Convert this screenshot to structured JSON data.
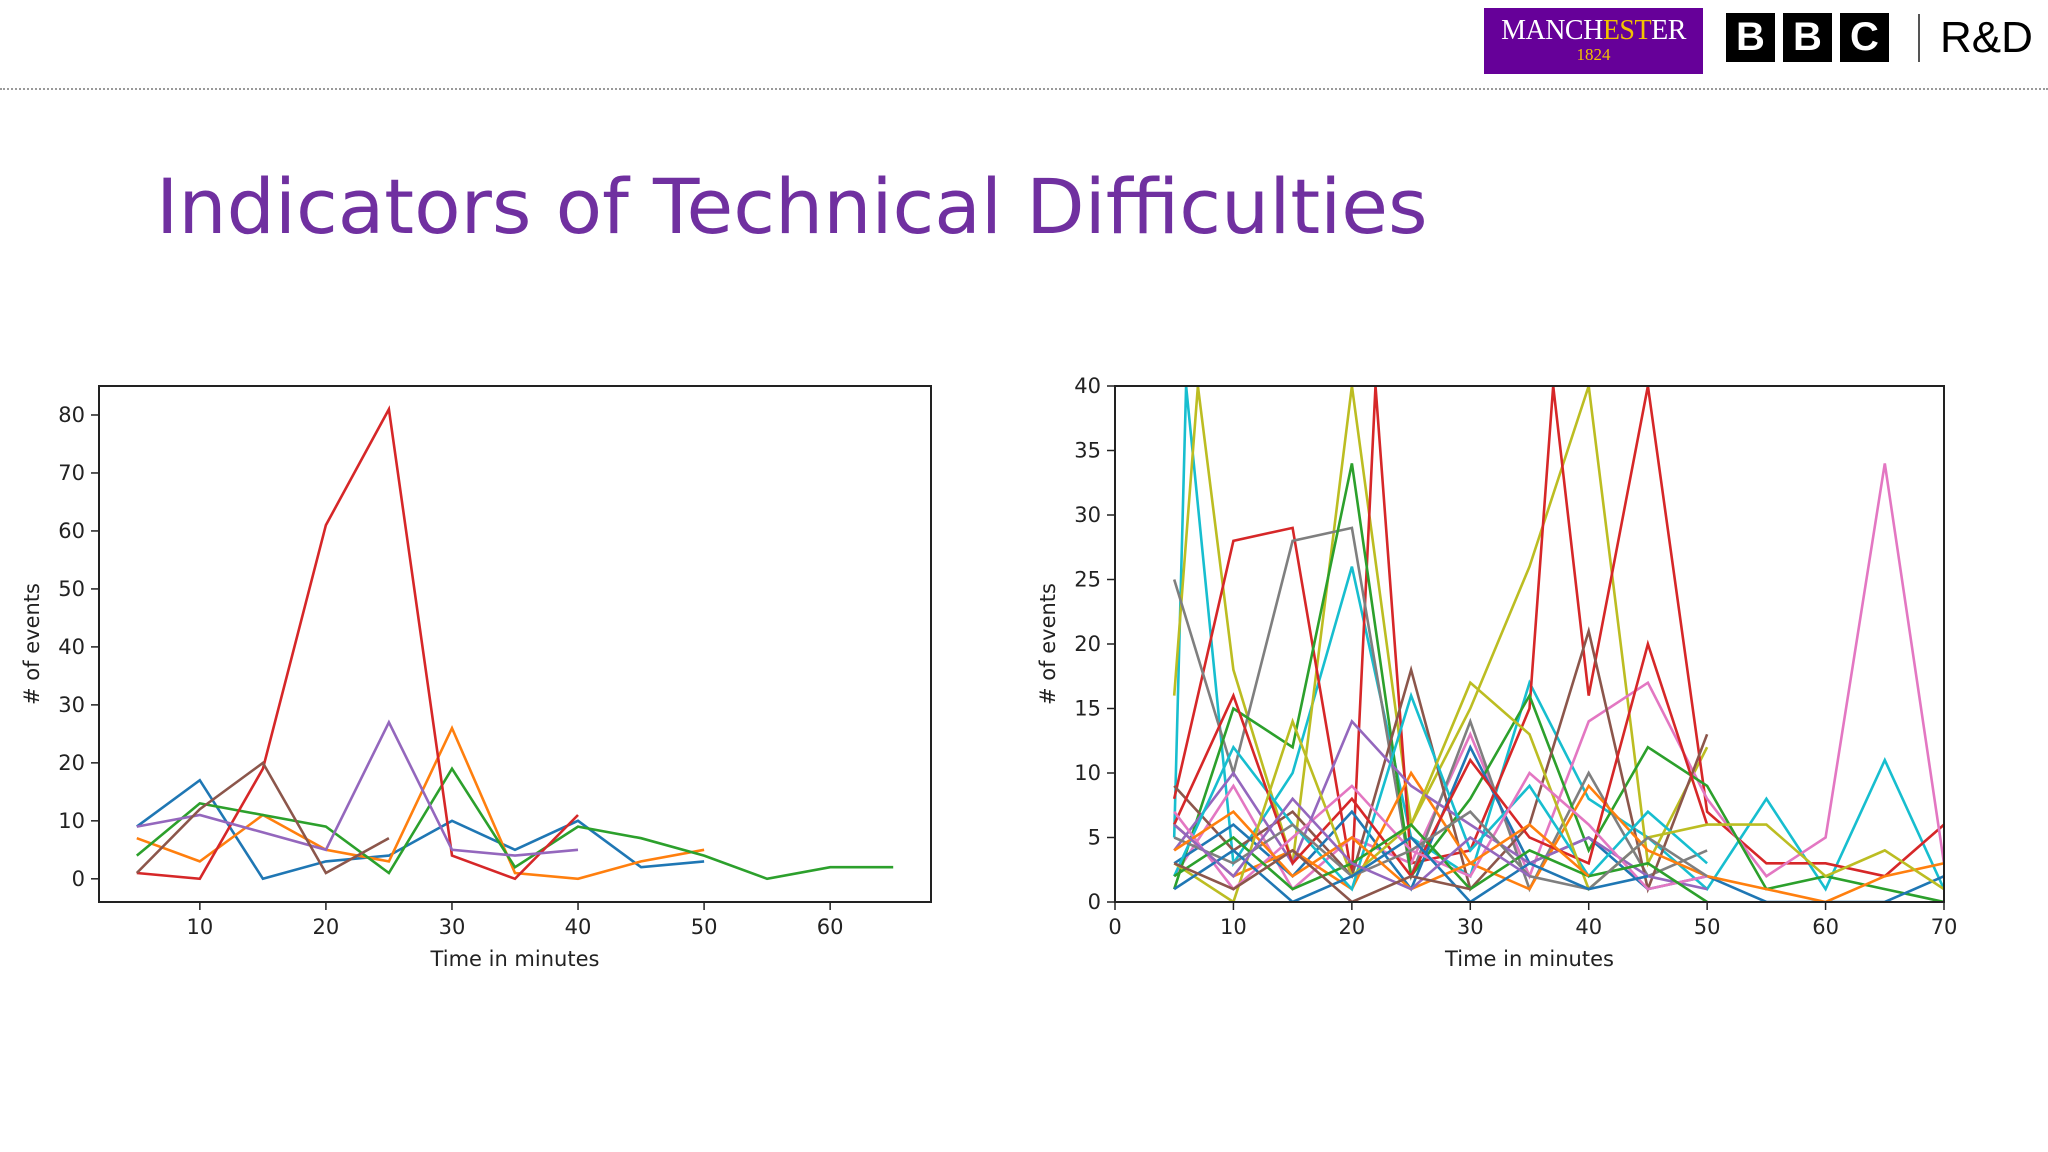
{
  "header": {
    "logo_manchester_word": "MANCHESTER",
    "logo_manchester_year": "1824",
    "bbc_letters": [
      "B",
      "B",
      "C"
    ],
    "rd_label": "R&D"
  },
  "slide": {
    "title": "Indicators of Technical Difficulties"
  },
  "chart_data": [
    {
      "type": "line",
      "title": "",
      "xlabel": "Time in minutes",
      "ylabel": "# of events",
      "xlim": [
        2,
        68
      ],
      "ylim": [
        -4,
        85
      ],
      "xticks": [
        10,
        20,
        30,
        40,
        50,
        60
      ],
      "yticks": [
        0,
        10,
        20,
        30,
        40,
        50,
        60,
        70,
        80
      ],
      "grid": false,
      "legend": false,
      "series": [
        {
          "color": "#1f77b4",
          "x": [
            5,
            10,
            15,
            20,
            25,
            30,
            35,
            40,
            45,
            50
          ],
          "y": [
            9,
            17,
            0,
            3,
            4,
            10,
            5,
            10,
            2,
            3
          ]
        },
        {
          "color": "#ff7f0e",
          "x": [
            5,
            10,
            15,
            20,
            25,
            30,
            35,
            40,
            45,
            50
          ],
          "y": [
            7,
            3,
            11,
            5,
            3,
            26,
            1,
            0,
            3,
            5
          ]
        },
        {
          "color": "#2ca02c",
          "x": [
            5,
            10,
            15,
            20,
            25,
            30,
            35,
            40,
            45,
            50,
            55,
            60,
            65
          ],
          "y": [
            4,
            13,
            11,
            9,
            1,
            19,
            2,
            9,
            7,
            4,
            0,
            2,
            2
          ]
        },
        {
          "color": "#d62728",
          "x": [
            5,
            10,
            15,
            20,
            25,
            30,
            35,
            40
          ],
          "y": [
            1,
            0,
            19,
            61,
            81,
            4,
            0,
            11
          ]
        },
        {
          "color": "#9467bd",
          "x": [
            5,
            10,
            15,
            20,
            25,
            30,
            35,
            40
          ],
          "y": [
            9,
            11,
            8,
            5,
            27,
            5,
            4,
            5
          ]
        },
        {
          "color": "#8c564b",
          "x": [
            5,
            10,
            15,
            20,
            25
          ],
          "y": [
            1,
            12,
            20,
            1,
            7
          ]
        }
      ]
    },
    {
      "type": "line",
      "title": "",
      "xlabel": "Time in minutes",
      "ylabel": "# of events",
      "xlim": [
        0,
        70
      ],
      "ylim": [
        0,
        40
      ],
      "xticks": [
        0,
        10,
        20,
        30,
        40,
        50,
        60,
        70
      ],
      "yticks": [
        0,
        5,
        10,
        15,
        20,
        25,
        30,
        35,
        40
      ],
      "grid": false,
      "legend": false,
      "series": [
        {
          "color": "#17becf",
          "x": [
            5,
            6,
            10,
            15,
            20,
            25,
            30,
            35,
            40,
            45,
            50,
            55,
            60,
            65,
            70
          ],
          "y": [
            5,
            40,
            3,
            10,
            26,
            5,
            2,
            17,
            8,
            5,
            1,
            8,
            1,
            11,
            1
          ]
        },
        {
          "color": "#bcbd22",
          "x": [
            5,
            7,
            10,
            15,
            20,
            25,
            30,
            35,
            40,
            45,
            50
          ],
          "y": [
            16,
            40,
            18,
            3,
            40,
            6,
            15,
            26,
            40,
            3,
            12
          ]
        },
        {
          "color": "#d62728",
          "x": [
            5,
            10,
            15,
            20,
            22,
            25,
            30,
            35,
            37,
            40,
            45,
            50,
            55,
            60,
            65,
            70
          ],
          "y": [
            8,
            28,
            29,
            2,
            40,
            3,
            4,
            15,
            40,
            16,
            40,
            7,
            3,
            3,
            2,
            6
          ]
        },
        {
          "color": "#e377c2",
          "x": [
            5,
            10,
            15,
            20,
            25,
            30,
            35,
            40,
            45,
            50,
            55,
            60,
            65,
            70
          ],
          "y": [
            2,
            9,
            1,
            5,
            3,
            13,
            2,
            14,
            17,
            8,
            2,
            5,
            34,
            3
          ]
        },
        {
          "color": "#7f7f7f",
          "x": [
            5,
            10,
            15,
            20,
            25,
            30,
            35,
            40,
            45,
            50
          ],
          "y": [
            25,
            10,
            28,
            29,
            2,
            14,
            1,
            10,
            2,
            4
          ]
        },
        {
          "color": "#2ca02c",
          "x": [
            5,
            10,
            15,
            20,
            25,
            30,
            35,
            40,
            45,
            50,
            55,
            60,
            65,
            70
          ],
          "y": [
            1,
            15,
            12,
            34,
            2,
            8,
            16,
            4,
            12,
            9,
            1,
            2,
            1,
            0
          ]
        },
        {
          "color": "#8c564b",
          "x": [
            5,
            10,
            15,
            20,
            25,
            30,
            35,
            40,
            45,
            50
          ],
          "y": [
            9,
            4,
            7,
            2,
            18,
            1,
            6,
            21,
            1,
            13
          ]
        },
        {
          "color": "#1f77b4",
          "x": [
            5,
            10,
            15,
            20,
            25,
            30,
            35,
            40,
            45,
            50,
            55,
            60,
            65,
            70
          ],
          "y": [
            3,
            6,
            2,
            7,
            1,
            12,
            3,
            5,
            1,
            2,
            0,
            0,
            0,
            2
          ]
        },
        {
          "color": "#ff7f0e",
          "x": [
            5,
            10,
            15,
            20,
            25,
            30,
            35,
            40,
            45,
            50,
            55,
            60,
            65,
            70
          ],
          "y": [
            6,
            2,
            4,
            1,
            10,
            3,
            1,
            9,
            4,
            2,
            1,
            0,
            2,
            3
          ]
        },
        {
          "color": "#9467bd",
          "x": [
            5,
            10,
            15,
            20,
            25,
            30,
            35,
            40,
            45,
            50
          ],
          "y": [
            4,
            10,
            3,
            14,
            9,
            6,
            3,
            5,
            2,
            1
          ]
        },
        {
          "color": "#17becf",
          "x": [
            5,
            10,
            15,
            20,
            25,
            30,
            35,
            40,
            45,
            50
          ],
          "y": [
            2,
            12,
            6,
            1,
            16,
            4,
            9,
            2,
            7,
            3
          ]
        },
        {
          "color": "#d62728",
          "x": [
            5,
            10,
            15,
            20,
            25,
            30,
            35,
            40,
            45,
            50
          ],
          "y": [
            6,
            16,
            3,
            8,
            2,
            11,
            5,
            3,
            20,
            6
          ]
        },
        {
          "color": "#bcbd22",
          "x": [
            5,
            10,
            15,
            20,
            25,
            30,
            35,
            40,
            45,
            50,
            55,
            60,
            65,
            70
          ],
          "y": [
            3,
            0,
            14,
            2,
            6,
            17,
            13,
            1,
            5,
            6,
            6,
            2,
            4,
            1
          ]
        },
        {
          "color": "#e377c2",
          "x": [
            5,
            10,
            15,
            20,
            25,
            30,
            35,
            40,
            45,
            50
          ],
          "y": [
            7,
            1,
            5,
            9,
            4,
            2,
            10,
            6,
            1,
            2
          ]
        },
        {
          "color": "#2ca02c",
          "x": [
            5,
            10,
            15,
            20,
            25,
            30,
            35,
            40,
            45,
            50
          ],
          "y": [
            2,
            5,
            1,
            3,
            6,
            1,
            4,
            2,
            3,
            0
          ]
        },
        {
          "color": "#7f7f7f",
          "x": [
            5,
            10,
            15,
            20,
            25,
            30,
            35,
            40,
            45,
            50
          ],
          "y": [
            5,
            3,
            6,
            2,
            4,
            7,
            2,
            1,
            5,
            2
          ]
        },
        {
          "color": "#ff7f0e",
          "x": [
            5,
            10,
            15,
            20,
            25,
            30,
            35,
            40
          ],
          "y": [
            4,
            7,
            2,
            5,
            1,
            3,
            6,
            2
          ]
        },
        {
          "color": "#1f77b4",
          "x": [
            5,
            10,
            15,
            20,
            25,
            30,
            35,
            40,
            45
          ],
          "y": [
            1,
            4,
            0,
            2,
            5,
            0,
            3,
            1,
            2
          ]
        },
        {
          "color": "#9467bd",
          "x": [
            5,
            10,
            15,
            20,
            25,
            30,
            35
          ],
          "y": [
            6,
            2,
            8,
            3,
            1,
            5,
            2
          ]
        },
        {
          "color": "#8c564b",
          "x": [
            5,
            10,
            15,
            20,
            25,
            30
          ],
          "y": [
            3,
            1,
            4,
            0,
            2,
            1
          ]
        }
      ]
    }
  ]
}
